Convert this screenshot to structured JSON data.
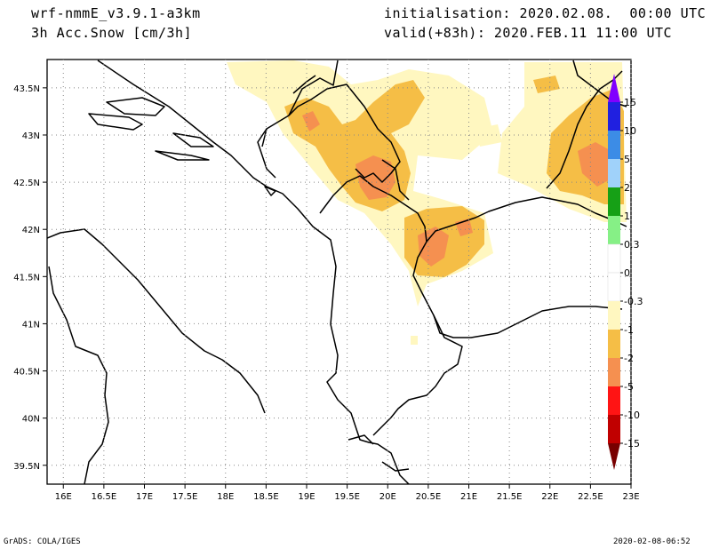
{
  "header": {
    "model": "wrf-nmmE_v3.9.1-a3km",
    "field": "3h Acc.Snow [cm/3h]",
    "init": "initialisation: 2020.02.08.  00:00 UTC",
    "valid": "valid(+83h): 2020.FEB.11 11:00 UTC"
  },
  "footer": {
    "credit": "GrADS: COLA/IGES",
    "timestamp": "2020-02-08-06:52"
  },
  "map": {
    "lon_range": [
      15.8,
      23.0
    ],
    "lat_range": [
      39.3,
      43.8
    ],
    "lon_ticks": [
      "16E",
      "16.5E",
      "17E",
      "17.5E",
      "18E",
      "18.5E",
      "19E",
      "19.5E",
      "20E",
      "20.5E",
      "21E",
      "21.5E",
      "22E",
      "22.5E",
      "23E"
    ],
    "lat_ticks": [
      "39.5N",
      "40N",
      "40.5N",
      "41N",
      "41.5N",
      "42N",
      "42.5N",
      "43N",
      "43.5N"
    ],
    "grid": true
  },
  "colorbar": {
    "labels": [
      "15",
      "10",
      "5",
      "2",
      "1",
      "0.3",
      "0",
      "-0.3",
      "-1",
      "-2",
      "-5",
      "-10",
      "-15"
    ],
    "colors": [
      "#8000ff",
      "#2020e0",
      "#3c8ce6",
      "#a0d2fa",
      "#16a016",
      "#86f086",
      "#ffffff",
      "#ffffff",
      "#fff7c0",
      "#f5be46",
      "#f59050",
      "#ff1414",
      "#c00000",
      "#960000",
      "#780000"
    ]
  }
}
